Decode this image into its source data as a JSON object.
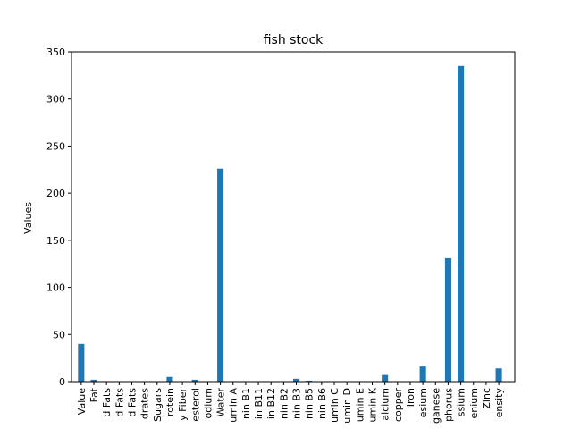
{
  "chart_data": {
    "type": "bar",
    "title": "fish stock",
    "xlabel": "",
    "ylabel": "Values",
    "ylim": [
      0,
      350
    ],
    "yticks": [
      0,
      50,
      100,
      150,
      200,
      250,
      300,
      350
    ],
    "bar_color": "#1f77b4",
    "grid": false,
    "categories": [
      "Value",
      "Fat",
      "d Fats",
      "d Fats",
      "d Fats",
      "drates",
      "Sugars",
      "rotein",
      "y Fiber",
      "esterol",
      "odium",
      "Water",
      "umin A",
      "nin B1",
      "in B11",
      "in B12",
      "nin B2",
      "nin B3",
      "nin B5",
      "nin B6",
      "umin C",
      "umin D",
      "umin E",
      "umin K",
      "alcium",
      "copper",
      "Iron",
      "esium",
      "ganese",
      "phorus",
      "ssium",
      "enium",
      "Zinc",
      "ensity"
    ],
    "values": [
      40,
      2,
      0.5,
      0.3,
      0.2,
      0.4,
      0.3,
      5,
      0,
      2,
      0,
      226,
      0,
      0,
      0,
      0,
      0,
      3,
      1,
      0.3,
      0,
      0,
      0,
      0,
      7,
      0,
      0.3,
      16,
      0,
      131,
      335,
      0,
      0,
      14
    ]
  }
}
